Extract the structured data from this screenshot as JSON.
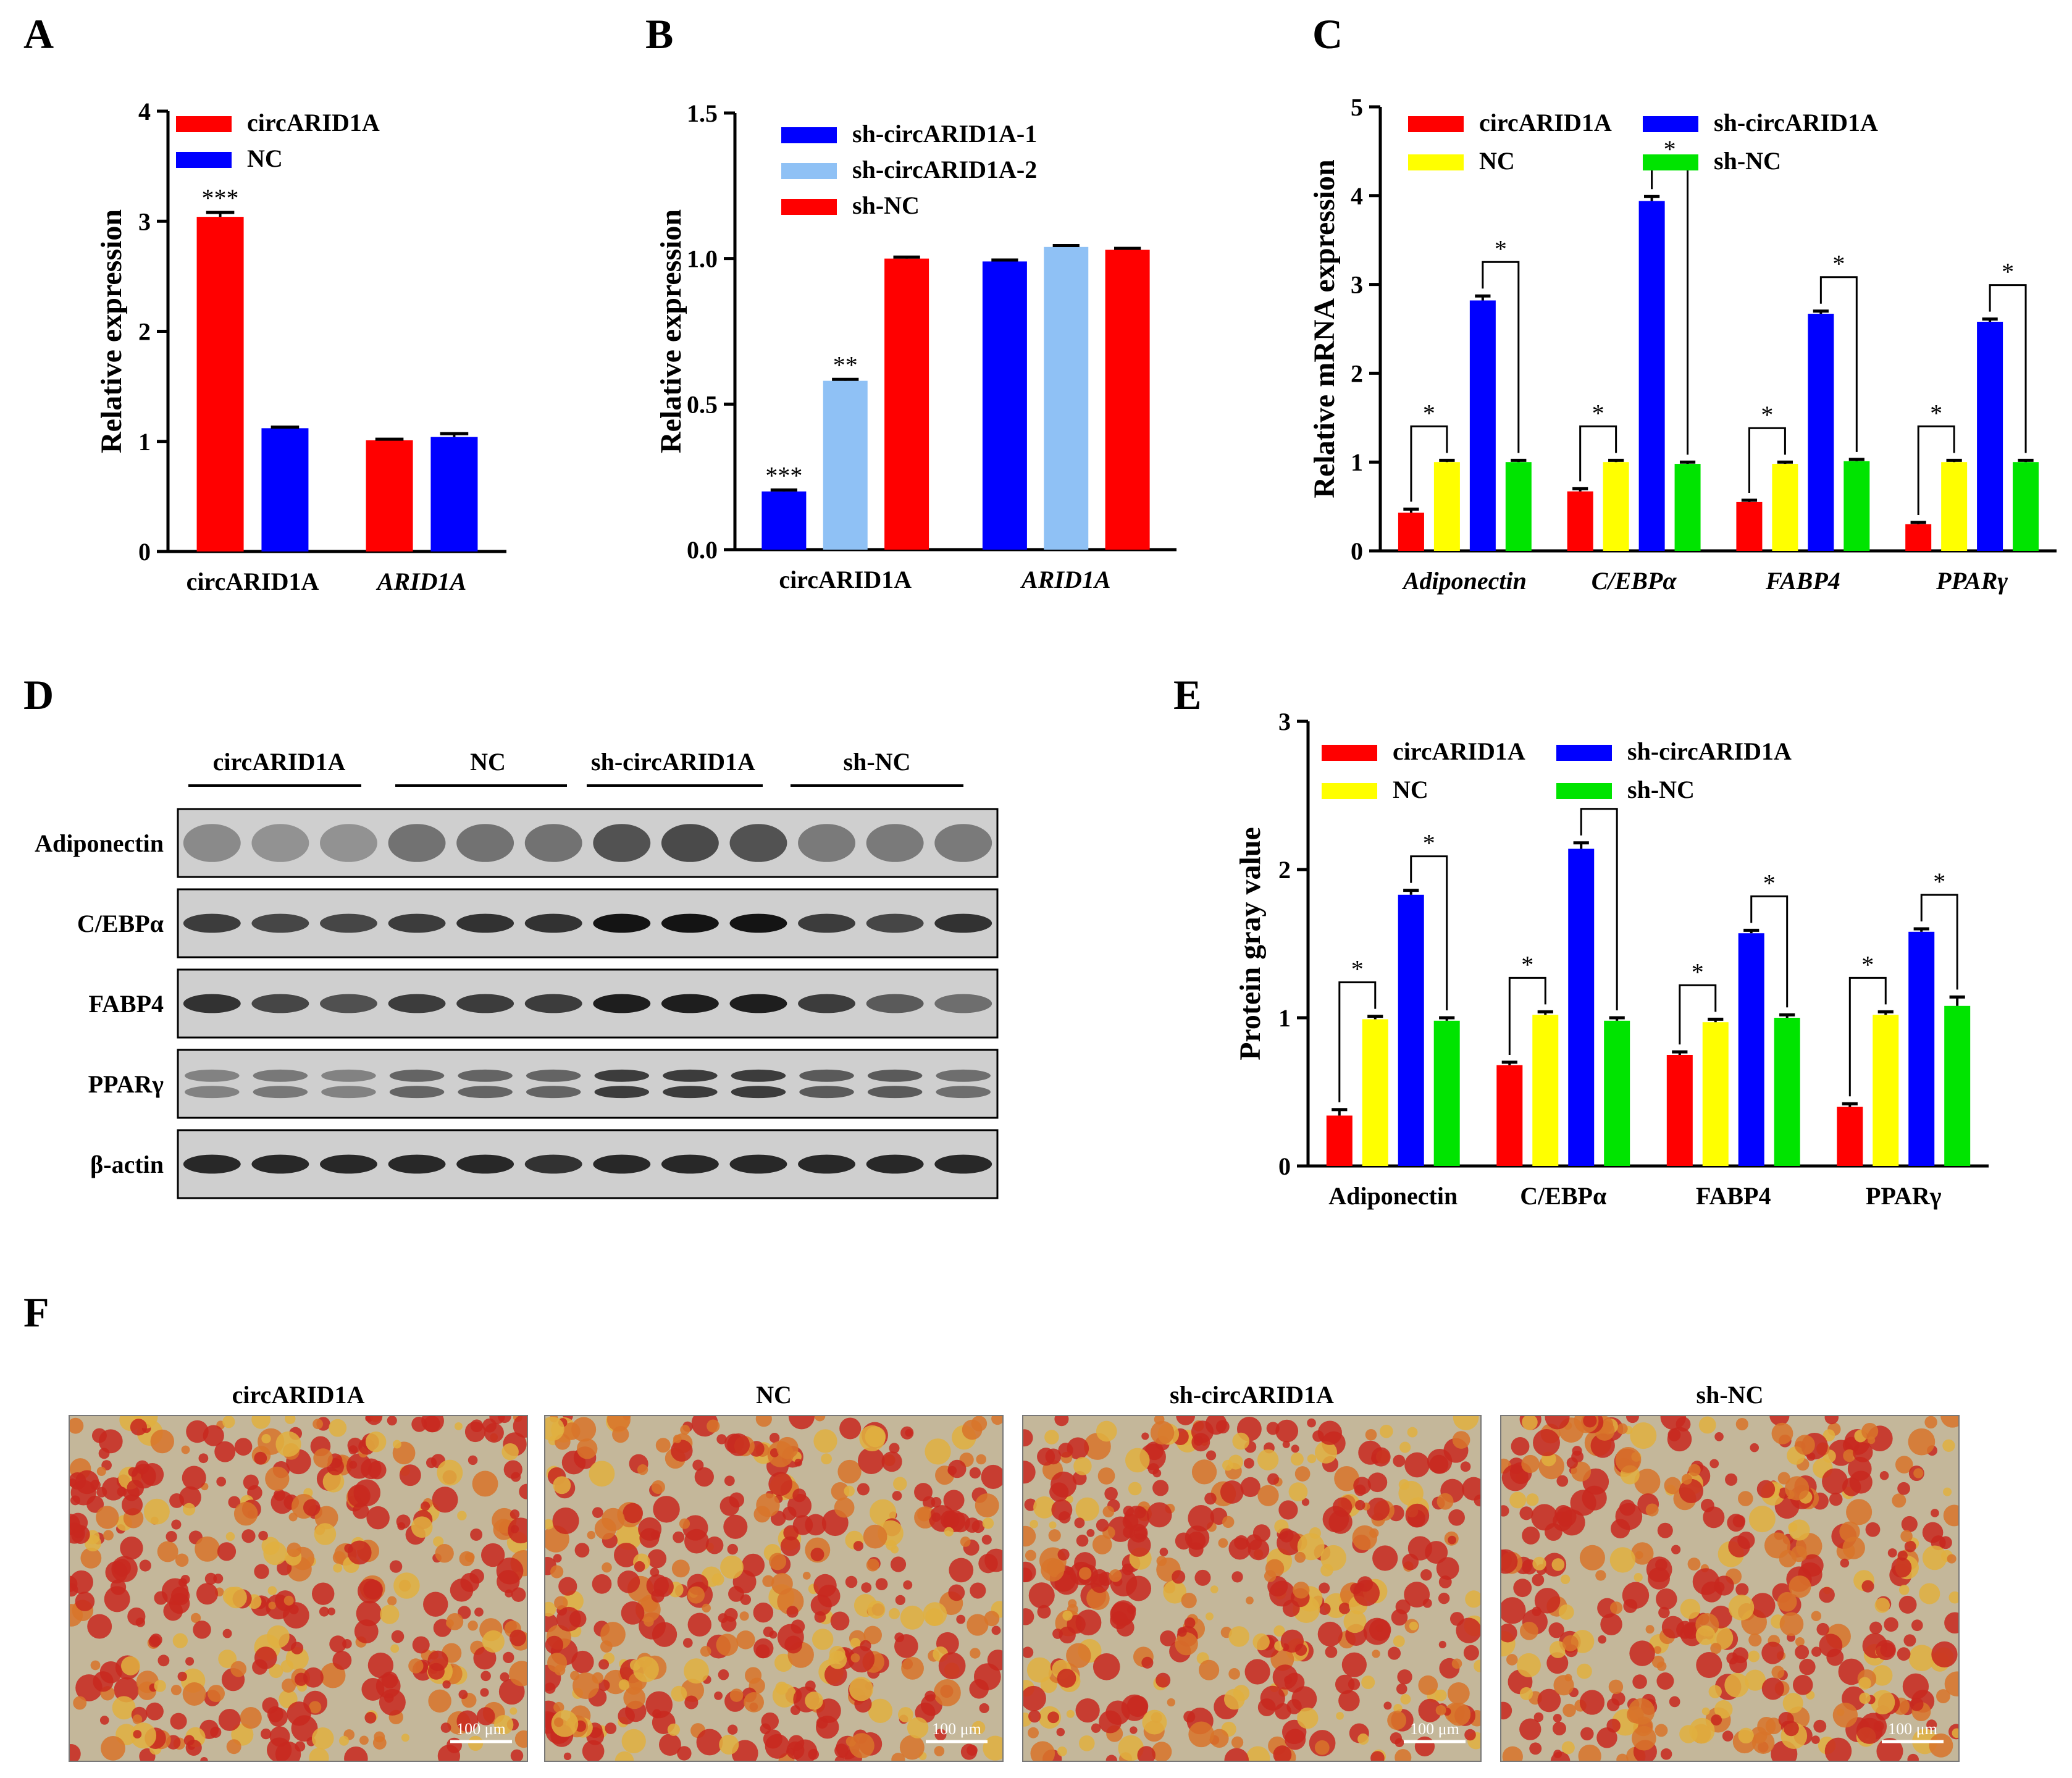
{
  "colors": {
    "red": "#ff0000",
    "blue": "#0000ff",
    "lightblue": "#8fc1f5",
    "yellow": "#ffff00",
    "green": "#00e400",
    "axis": "#000000",
    "stain_red": "#c8281e",
    "stain_bg": "#c4b79a"
  },
  "panels": {
    "A": "A",
    "B": "B",
    "C": "C",
    "D": "D",
    "E": "E",
    "F": "F"
  },
  "chart_data": [
    {
      "panel": "A",
      "type": "bar",
      "ylabel": "Relative expression",
      "xlabel": "",
      "ylim": [
        0,
        4
      ],
      "yticks": [
        "0",
        "1",
        "2",
        "3",
        "4"
      ],
      "categories": [
        "circARID1A",
        "ARID1A"
      ],
      "category_italic": [
        false,
        true
      ],
      "series": [
        {
          "name": "circARID1A",
          "color": "#ff0000",
          "values": [
            3.04,
            1.01
          ],
          "errors": [
            0.04,
            0.01
          ]
        },
        {
          "name": "NC",
          "color": "#0000ff",
          "values": [
            1.12,
            1.04
          ],
          "errors": [
            0.01,
            0.03
          ]
        }
      ],
      "annotations": [
        {
          "series": 0,
          "category": 0,
          "text": "***"
        }
      ],
      "brackets": [],
      "legend": "top-right",
      "grid": false
    },
    {
      "panel": "B",
      "type": "bar",
      "ylabel": "Relative expression",
      "xlabel": "",
      "ylim": [
        0,
        1.5
      ],
      "yticks": [
        "0.0",
        "0.5",
        "1.0",
        "1.5"
      ],
      "categories": [
        "circARID1A",
        "ARID1A"
      ],
      "category_italic": [
        false,
        true
      ],
      "series": [
        {
          "name": "sh-circARID1A-1",
          "color": "#0000ff",
          "values": [
            0.2,
            0.99
          ],
          "errors": [
            0.005,
            0.005
          ]
        },
        {
          "name": "sh-circARID1A-2",
          "color": "#8fc1f5",
          "values": [
            0.58,
            1.04
          ],
          "errors": [
            0.005,
            0.005
          ]
        },
        {
          "name": "sh-NC",
          "color": "#ff0000",
          "values": [
            1.0,
            1.03
          ],
          "errors": [
            0.005,
            0.005
          ]
        }
      ],
      "annotations": [
        {
          "series": 0,
          "category": 0,
          "text": "***"
        },
        {
          "series": 1,
          "category": 0,
          "text": "**"
        }
      ],
      "brackets": [],
      "legend": "top-right",
      "grid": false
    },
    {
      "panel": "C",
      "type": "bar",
      "ylabel": "Relative mRNA expression",
      "xlabel": "",
      "ylim": [
        0,
        5
      ],
      "yticks": [
        "0",
        "1",
        "2",
        "3",
        "4",
        "5"
      ],
      "categories": [
        "Adiponectin",
        "C/EBPα",
        "FABP4",
        "PPARγ"
      ],
      "category_italic": [
        true,
        true,
        true,
        true
      ],
      "series": [
        {
          "name": "circARID1A",
          "color": "#ff0000",
          "values": [
            0.43,
            0.67,
            0.55,
            0.3
          ],
          "errors": [
            0.04,
            0.03,
            0.02,
            0.02
          ]
        },
        {
          "name": "NC",
          "color": "#ffff00",
          "values": [
            1.0,
            1.0,
            0.98,
            1.0
          ],
          "errors": [
            0.02,
            0.02,
            0.02,
            0.02
          ]
        },
        {
          "name": "sh-circARID1A",
          "color": "#0000ff",
          "values": [
            2.82,
            3.94,
            2.67,
            2.58
          ],
          "errors": [
            0.05,
            0.05,
            0.03,
            0.03
          ]
        },
        {
          "name": "sh-NC",
          "color": "#00e400",
          "values": [
            1.0,
            0.98,
            1.01,
            1.0
          ],
          "errors": [
            0.02,
            0.02,
            0.02,
            0.02
          ]
        }
      ],
      "annotations": [],
      "brackets": [
        {
          "category": 0,
          "from": 0,
          "to": 1,
          "text": "*"
        },
        {
          "category": 0,
          "from": 2,
          "to": 3,
          "text": "*"
        },
        {
          "category": 1,
          "from": 0,
          "to": 1,
          "text": "*"
        },
        {
          "category": 1,
          "from": 2,
          "to": 3,
          "text": "*"
        },
        {
          "category": 2,
          "from": 0,
          "to": 1,
          "text": "*"
        },
        {
          "category": 2,
          "from": 2,
          "to": 3,
          "text": "*"
        },
        {
          "category": 3,
          "from": 0,
          "to": 1,
          "text": "*"
        },
        {
          "category": 3,
          "from": 2,
          "to": 3,
          "text": "*"
        }
      ],
      "legend": "top",
      "grid": false
    },
    {
      "panel": "E",
      "type": "bar",
      "ylabel": "Protein gray value",
      "xlabel": "",
      "ylim": [
        0,
        3
      ],
      "yticks": [
        "0",
        "1",
        "2",
        "3"
      ],
      "categories": [
        "Adiponectin",
        "C/EBPα",
        "FABP4",
        "PPARγ"
      ],
      "category_italic": [
        false,
        false,
        false,
        false
      ],
      "series": [
        {
          "name": "circARID1A",
          "color": "#ff0000",
          "values": [
            0.34,
            0.68,
            0.75,
            0.4
          ],
          "errors": [
            0.04,
            0.02,
            0.02,
            0.02
          ]
        },
        {
          "name": "NC",
          "color": "#ffff00",
          "values": [
            0.99,
            1.02,
            0.97,
            1.02
          ],
          "errors": [
            0.02,
            0.02,
            0.02,
            0.02
          ]
        },
        {
          "name": "sh-circARID1A",
          "color": "#0000ff",
          "values": [
            1.83,
            2.14,
            1.57,
            1.58
          ],
          "errors": [
            0.03,
            0.04,
            0.02,
            0.02
          ]
        },
        {
          "name": "sh-NC",
          "color": "#00e400",
          "values": [
            0.98,
            0.98,
            1.0,
            1.08
          ],
          "errors": [
            0.02,
            0.02,
            0.02,
            0.06
          ]
        }
      ],
      "annotations": [],
      "brackets": [
        {
          "category": 0,
          "from": 0,
          "to": 1,
          "text": "*"
        },
        {
          "category": 0,
          "from": 2,
          "to": 3,
          "text": "*"
        },
        {
          "category": 1,
          "from": 0,
          "to": 1,
          "text": "*"
        },
        {
          "category": 1,
          "from": 2,
          "to": 3,
          "text": "*"
        },
        {
          "category": 2,
          "from": 0,
          "to": 1,
          "text": "*"
        },
        {
          "category": 2,
          "from": 2,
          "to": 3,
          "text": "*"
        },
        {
          "category": 3,
          "from": 0,
          "to": 1,
          "text": "*"
        },
        {
          "category": 3,
          "from": 2,
          "to": 3,
          "text": "*"
        }
      ],
      "legend": "top",
      "grid": false
    }
  ],
  "blot": {
    "groups": [
      "circARID1A",
      "NC",
      "sh-circARID1A",
      "sh-NC"
    ],
    "rows": [
      {
        "label": "Adiponectin",
        "intensity": [
          0.45,
          0.4,
          0.4,
          0.6,
          0.6,
          0.6,
          0.8,
          0.85,
          0.8,
          0.55,
          0.55,
          0.55
        ],
        "smear": true
      },
      {
        "label": "C/EBPα",
        "intensity": [
          0.75,
          0.7,
          0.7,
          0.75,
          0.8,
          0.8,
          0.95,
          0.95,
          0.95,
          0.75,
          0.7,
          0.8
        ],
        "smear": false
      },
      {
        "label": "FABP4",
        "intensity": [
          0.8,
          0.7,
          0.65,
          0.75,
          0.75,
          0.75,
          0.9,
          0.9,
          0.9,
          0.75,
          0.6,
          0.5
        ],
        "smear": false
      },
      {
        "label": "PPARγ",
        "intensity": [
          0.4,
          0.45,
          0.4,
          0.55,
          0.55,
          0.55,
          0.75,
          0.75,
          0.75,
          0.6,
          0.6,
          0.5
        ],
        "smear": false,
        "double": true
      },
      {
        "label": "β-actin",
        "intensity": [
          0.85,
          0.85,
          0.85,
          0.85,
          0.85,
          0.8,
          0.85,
          0.85,
          0.85,
          0.85,
          0.85,
          0.85
        ],
        "smear": false
      }
    ]
  },
  "stain": {
    "titles": [
      "circARID1A",
      "NC",
      "sh-circARID1A",
      "sh-NC"
    ],
    "scale_label": "100 μm"
  }
}
